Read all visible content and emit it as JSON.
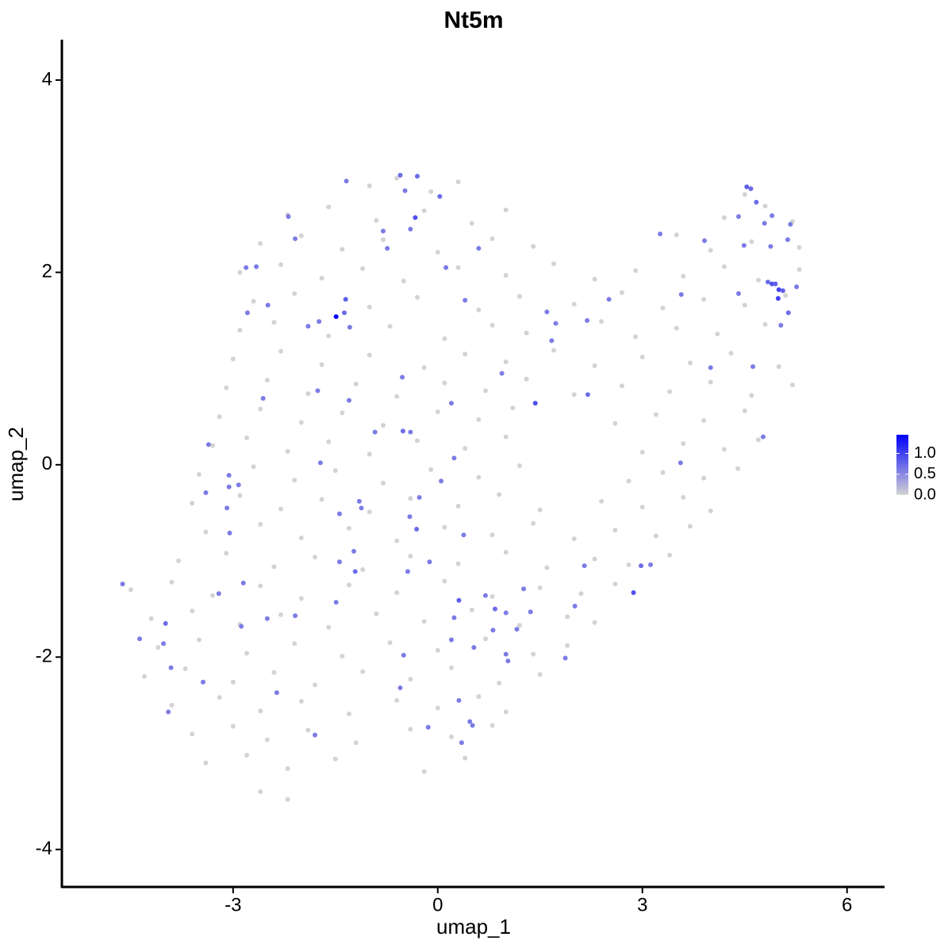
{
  "chart_data": {
    "type": "scatter",
    "title": "Nt5m",
    "xlabel": "umap_1",
    "ylabel": "umap_2",
    "xlim": [
      -5.51,
      6.55
    ],
    "ylim": [
      -4.39,
      4.42
    ],
    "xticks": [
      -3,
      0,
      3,
      6
    ],
    "yticks": [
      -4,
      -2,
      0,
      2,
      4
    ],
    "colorbar": {
      "lim": [
        0,
        1.45
      ],
      "low": "#d3d3d3",
      "high": "#0000ff",
      "ticks": [
        {
          "value": 0,
          "label": "0.0"
        },
        {
          "value": 0.5,
          "label": "0.5"
        },
        {
          "value": 1,
          "label": "1.0"
        }
      ]
    },
    "x": [
      -1.0,
      -0.6,
      -0.1,
      0.3,
      4.5,
      -2.2,
      -1.6,
      -0.9,
      -0.2,
      0.5,
      1.0,
      4.2,
      4.8,
      5.2,
      -2.6,
      -2.0,
      -1.4,
      -0.8,
      0.0,
      0.8,
      1.4,
      3.5,
      4.0,
      4.6,
      5.3,
      -2.9,
      -2.3,
      -1.7,
      -1.1,
      -0.5,
      0.3,
      1.0,
      1.7,
      2.3,
      2.9,
      3.6,
      4.2,
      4.7,
      5.3,
      -2.7,
      -2.1,
      -1.0,
      -0.3,
      0.6,
      1.2,
      2.0,
      2.7,
      3.3,
      3.9,
      4.5,
      5.1,
      -2.9,
      -2.4,
      -1.6,
      -0.7,
      0.1,
      0.8,
      1.3,
      2.4,
      2.9,
      3.5,
      4.1,
      4.8,
      -3.0,
      -2.3,
      -1.7,
      -1.0,
      -0.2,
      0.4,
      1.0,
      1.7,
      2.3,
      3.0,
      3.7,
      4.3,
      5.0,
      -3.1,
      -2.5,
      -1.9,
      -1.2,
      -0.6,
      0.1,
      0.7,
      1.3,
      2.0,
      2.7,
      3.4,
      4.0,
      4.6,
      5.2,
      -3.2,
      -2.6,
      -2.0,
      -1.4,
      -0.8,
      0.0,
      0.6,
      1.1,
      2.6,
      3.2,
      3.9,
      4.5,
      -3.3,
      -2.8,
      -2.2,
      -1.6,
      -1.0,
      -0.3,
      0.4,
      1.0,
      3.0,
      3.6,
      4.2,
      4.7,
      -3.5,
      -2.7,
      -2.1,
      -1.5,
      -0.8,
      -0.1,
      0.6,
      1.2,
      2.8,
      3.3,
      3.9,
      4.4,
      -3.6,
      -2.9,
      -2.3,
      -1.7,
      -1.0,
      -0.4,
      0.3,
      0.9,
      1.5,
      2.4,
      3.0,
      3.6,
      4.0,
      -3.4,
      -2.6,
      -2.0,
      -1.3,
      -0.6,
      0.1,
      0.8,
      1.4,
      2.0,
      2.6,
      3.2,
      3.7,
      -3.8,
      -3.1,
      -2.4,
      -1.8,
      -1.1,
      -0.4,
      0.3,
      1.0,
      1.6,
      2.3,
      2.8,
      3.4,
      -4.5,
      -3.9,
      -3.3,
      -2.6,
      -2.0,
      -1.3,
      -0.6,
      0.1,
      0.8,
      1.5,
      2.1,
      2.6,
      -4.2,
      -3.6,
      -2.9,
      -2.3,
      -1.6,
      -0.9,
      -0.2,
      0.5,
      1.2,
      1.9,
      2.3,
      -4.1,
      -3.5,
      -2.8,
      -2.1,
      -1.4,
      -0.7,
      0.0,
      0.7,
      1.4,
      1.9,
      -4.3,
      -3.7,
      -3.0,
      -2.4,
      -1.8,
      -1.1,
      -0.4,
      0.2,
      0.9,
      1.5,
      -3.9,
      -3.2,
      -2.6,
      -2.0,
      -1.3,
      -0.6,
      0.0,
      0.6,
      1.0,
      -3.6,
      -3.0,
      -2.5,
      -1.9,
      -1.2,
      -0.4,
      0.2,
      0.8,
      -3.4,
      -2.8,
      -2.2,
      -1.5,
      -0.2,
      0.4,
      -2.6,
      -2.2,
      -1.49,
      -1.35,
      -1.37,
      -2.19,
      -2.09,
      -2.81,
      -2.66,
      -2.79,
      -2.49,
      -1.9,
      -1.74,
      -1.29,
      -1.34,
      -0.8,
      -0.74,
      -0.55,
      -0.48,
      -0.3,
      -0.33,
      -0.4,
      0.03,
      0.12,
      0.4,
      0.6,
      -1.76,
      -1.3,
      -0.92,
      -0.51,
      -0.4,
      -0.52,
      0.2,
      -2.56,
      -3.36,
      -3.4,
      -3.06,
      -3.06,
      -2.92,
      -1.72,
      0.24,
      0.05,
      0.94,
      1.43,
      2.2,
      1.6,
      1.73,
      2.19,
      2.51,
      1.67,
      3.26,
      3.57,
      3.91,
      4.0,
      4.49,
      4.62,
      4.41,
      4.77,
      3.56,
      4.53,
      4.59,
      4.41,
      4.67,
      4.79,
      4.9,
      5.17,
      5.13,
      4.88,
      4.84,
      4.9,
      4.95,
      5.0,
      5.06,
      4.99,
      5.26,
      5.14,
      5.03,
      -1.44,
      -1.15,
      -1.12,
      -0.41,
      -0.27,
      -0.31,
      -0.12,
      0.38,
      -0.44,
      -1.44,
      -1.21,
      -1.23,
      -1.49,
      -3.09,
      -3.05,
      -2.85,
      -3.21,
      -2.88,
      -2.09,
      -2.5,
      -3.99,
      -4.37,
      -4.02,
      -3.91,
      -4.62,
      -3.95,
      -3.44,
      -2.36,
      -1.8,
      -0.5,
      -0.55,
      0.31,
      0.24,
      0.2,
      0.31,
      0.47,
      0.51,
      0.35,
      -0.14,
      0.7,
      0.84,
      1.0,
      0.81,
      0.53,
      1.0,
      1.03,
      1.16,
      1.26,
      1.87,
      2.01,
      2.15,
      2.98,
      3.12,
      2.87,
      1.36
    ],
    "y": [
      2.9,
      2.98,
      2.84,
      2.94,
      2.81,
      2.6,
      2.68,
      2.54,
      2.64,
      2.51,
      2.65,
      2.57,
      2.69,
      2.53,
      2.3,
      2.38,
      2.24,
      2.34,
      2.21,
      2.35,
      2.27,
      2.39,
      2.23,
      2.32,
      2.26,
      2.0,
      2.08,
      1.94,
      2.04,
      1.91,
      2.05,
      1.97,
      2.09,
      1.93,
      2.02,
      1.96,
      2.06,
      1.92,
      2.03,
      1.7,
      1.78,
      1.64,
      1.74,
      1.61,
      1.75,
      1.67,
      1.79,
      1.63,
      1.72,
      1.66,
      1.76,
      1.4,
      1.48,
      1.34,
      1.44,
      1.31,
      1.45,
      1.37,
      1.49,
      1.33,
      1.42,
      1.36,
      1.46,
      1.1,
      1.18,
      1.04,
      1.14,
      1.01,
      1.15,
      1.07,
      1.19,
      1.03,
      1.12,
      1.06,
      1.16,
      1.02,
      0.8,
      0.88,
      0.74,
      0.84,
      0.71,
      0.85,
      0.77,
      0.89,
      0.73,
      0.82,
      0.76,
      0.86,
      0.72,
      0.83,
      0.5,
      0.58,
      0.44,
      0.54,
      0.41,
      0.55,
      0.47,
      0.59,
      0.43,
      0.52,
      0.46,
      0.56,
      0.2,
      0.28,
      0.14,
      0.24,
      0.11,
      0.25,
      0.17,
      0.29,
      0.13,
      0.22,
      0.16,
      0.26,
      -0.1,
      -0.02,
      -0.16,
      -0.06,
      -0.19,
      -0.05,
      -0.13,
      -0.01,
      -0.17,
      -0.08,
      -0.14,
      -0.04,
      -0.4,
      -0.32,
      -0.46,
      -0.36,
      -0.49,
      -0.35,
      -0.43,
      -0.31,
      -0.47,
      -0.38,
      -0.44,
      -0.34,
      -0.48,
      -0.7,
      -0.62,
      -0.76,
      -0.66,
      -0.79,
      -0.65,
      -0.73,
      -0.61,
      -0.77,
      -0.68,
      -0.74,
      -0.64,
      -1.0,
      -0.92,
      -1.06,
      -0.96,
      -1.09,
      -0.95,
      -1.03,
      -0.91,
      -1.07,
      -0.98,
      -1.04,
      -0.94,
      -1.3,
      -1.22,
      -1.36,
      -1.26,
      -1.39,
      -1.25,
      -1.33,
      -1.21,
      -1.37,
      -1.28,
      -1.34,
      -1.24,
      -1.6,
      -1.52,
      -1.66,
      -1.56,
      -1.69,
      -1.55,
      -1.63,
      -1.51,
      -1.67,
      -1.58,
      -1.64,
      -1.9,
      -1.82,
      -1.96,
      -1.86,
      -1.99,
      -1.85,
      -1.93,
      -1.81,
      -1.97,
      -1.88,
      -2.2,
      -2.12,
      -2.26,
      -2.16,
      -2.29,
      -2.15,
      -2.23,
      -2.11,
      -2.27,
      -2.18,
      -2.5,
      -2.42,
      -2.56,
      -2.46,
      -2.59,
      -2.45,
      -2.53,
      -2.41,
      -2.57,
      -2.8,
      -2.72,
      -2.86,
      -2.76,
      -2.89,
      -2.75,
      -2.83,
      -2.71,
      -3.1,
      -3.02,
      -3.16,
      -3.06,
      -3.19,
      -3.05,
      -3.4,
      -3.48,
      1.54,
      1.72,
      1.58,
      2.58,
      2.35,
      2.05,
      2.06,
      1.58,
      1.66,
      1.44,
      1.49,
      1.43,
      2.95,
      2.43,
      2.25,
      3.01,
      2.85,
      3.0,
      2.57,
      2.45,
      2.79,
      2.05,
      1.71,
      2.25,
      0.77,
      0.67,
      0.34,
      0.35,
      0.34,
      0.91,
      0.64,
      0.69,
      0.21,
      -0.29,
      -0.11,
      -0.23,
      -0.21,
      0.02,
      0.07,
      -0.17,
      0.95,
      0.64,
      0.73,
      1.59,
      1.47,
      1.5,
      1.72,
      1.29,
      2.4,
      1.77,
      2.33,
      1.01,
      2.28,
      1.02,
      1.78,
      0.29,
      0.02,
      2.89,
      2.87,
      2.58,
      2.73,
      2.51,
      2.59,
      2.5,
      2.34,
      2.27,
      1.9,
      1.88,
      1.88,
      1.82,
      1.81,
      1.73,
      1.85,
      1.58,
      1.45,
      -0.51,
      -0.38,
      -0.45,
      -0.54,
      -0.34,
      -0.67,
      -1.01,
      -0.73,
      -1.11,
      -1.01,
      -1.11,
      -0.9,
      -1.43,
      -0.45,
      -0.71,
      -1.23,
      -1.34,
      -1.68,
      -1.57,
      -1.6,
      -1.65,
      -1.81,
      -1.86,
      -2.11,
      -1.24,
      -2.57,
      -2.26,
      -2.37,
      -2.81,
      -1.98,
      -2.32,
      -1.41,
      -1.59,
      -1.82,
      -2.45,
      -2.67,
      -2.71,
      -2.89,
      -2.73,
      -1.36,
      -1.5,
      -1.54,
      -1.72,
      -1.9,
      -1.97,
      -2.04,
      -1.71,
      -1.29,
      -2.01,
      -1.47,
      -1.05,
      -1.05,
      -1.04,
      -1.33,
      -1.53
    ],
    "values": [
      0,
      0,
      0,
      0,
      0,
      0,
      0,
      0,
      0,
      0,
      0,
      0,
      0,
      0,
      0,
      0,
      0,
      0,
      0,
      0,
      0,
      0,
      0,
      0,
      0,
      0,
      0,
      0,
      0,
      0,
      0,
      0,
      0,
      0,
      0,
      0,
      0,
      0,
      0,
      0,
      0,
      0,
      0,
      0,
      0,
      0,
      0,
      0,
      0,
      0,
      0,
      0,
      0,
      0,
      0,
      0,
      0,
      0,
      0,
      0,
      0,
      0,
      0,
      0,
      0,
      0,
      0,
      0,
      0,
      0,
      0,
      0,
      0,
      0,
      0,
      0,
      0,
      0,
      0,
      0,
      0,
      0,
      0,
      0,
      0,
      0,
      0,
      0,
      0,
      0,
      0,
      0,
      0,
      0,
      0,
      0,
      0,
      0,
      0,
      0,
      0,
      0,
      0,
      0,
      0,
      0,
      0,
      0,
      0,
      0,
      0,
      0,
      0,
      0,
      0,
      0,
      0,
      0,
      0,
      0,
      0,
      0,
      0,
      0,
      0,
      0,
      0,
      0,
      0,
      0,
      0,
      0,
      0,
      0,
      0,
      0,
      0,
      0,
      0,
      0,
      0,
      0,
      0,
      0,
      0,
      0,
      0,
      0,
      0,
      0,
      0,
      0,
      0,
      0,
      0,
      0,
      0,
      0,
      0,
      0,
      0,
      0,
      0,
      0,
      0,
      0,
      0,
      0,
      0,
      0,
      0,
      0,
      0,
      0,
      0,
      0,
      0,
      0,
      0,
      0,
      0,
      0,
      0,
      0,
      0,
      0,
      0,
      0,
      0,
      0,
      0,
      0,
      0,
      0,
      0,
      0,
      0,
      0,
      0,
      0,
      0,
      0,
      0,
      0,
      0,
      0,
      0,
      0,
      0,
      0,
      0,
      0,
      0,
      0,
      0,
      0,
      0,
      0,
      0,
      0,
      0,
      0,
      0,
      0,
      0,
      0,
      0,
      0,
      0,
      0,
      0,
      1.4,
      0.8,
      0.7,
      0.6,
      0.6,
      0.6,
      0.6,
      0.6,
      0.6,
      0.6,
      0.6,
      0.6,
      0.6,
      0.6,
      0.6,
      0.7,
      0.6,
      0.7,
      0.9,
      0.6,
      0.7,
      0.6,
      0.6,
      0.6,
      0.6,
      0.6,
      0.6,
      0.7,
      0.6,
      0.6,
      0.6,
      0.6,
      0.6,
      0.6,
      0.6,
      0.6,
      0.6,
      0.6,
      0.6,
      0.6,
      0.6,
      0.9,
      0.7,
      0.6,
      0.6,
      0.6,
      0.6,
      0.6,
      0.6,
      0.6,
      0.6,
      0.6,
      0.6,
      0.6,
      0.6,
      0.6,
      0.6,
      0.8,
      0.7,
      0.6,
      0.7,
      0.6,
      0.6,
      0.6,
      0.6,
      0.6,
      0.7,
      0.9,
      0.8,
      1.0,
      0.8,
      1.0,
      0.6,
      0.7,
      0.6,
      0.6,
      0.6,
      0.6,
      0.6,
      0.6,
      0.7,
      0.6,
      0.6,
      0.6,
      0.6,
      0.7,
      0.6,
      0.6,
      0.6,
      0.6,
      0.6,
      0.6,
      0.6,
      0.6,
      0.6,
      0.7,
      0.6,
      0.6,
      0.6,
      0.6,
      0.6,
      0.6,
      0.6,
      0.6,
      0.6,
      0.6,
      0.8,
      0.6,
      0.6,
      0.6,
      0.6,
      0.6,
      0.6,
      0.6,
      0.6,
      0.7,
      0.6,
      0.6,
      0.6,
      0.6,
      0.6,
      0.6,
      0.6,
      0.6,
      0.6,
      0.6,
      0.7,
      0.6,
      0.9,
      0.6
    ]
  }
}
